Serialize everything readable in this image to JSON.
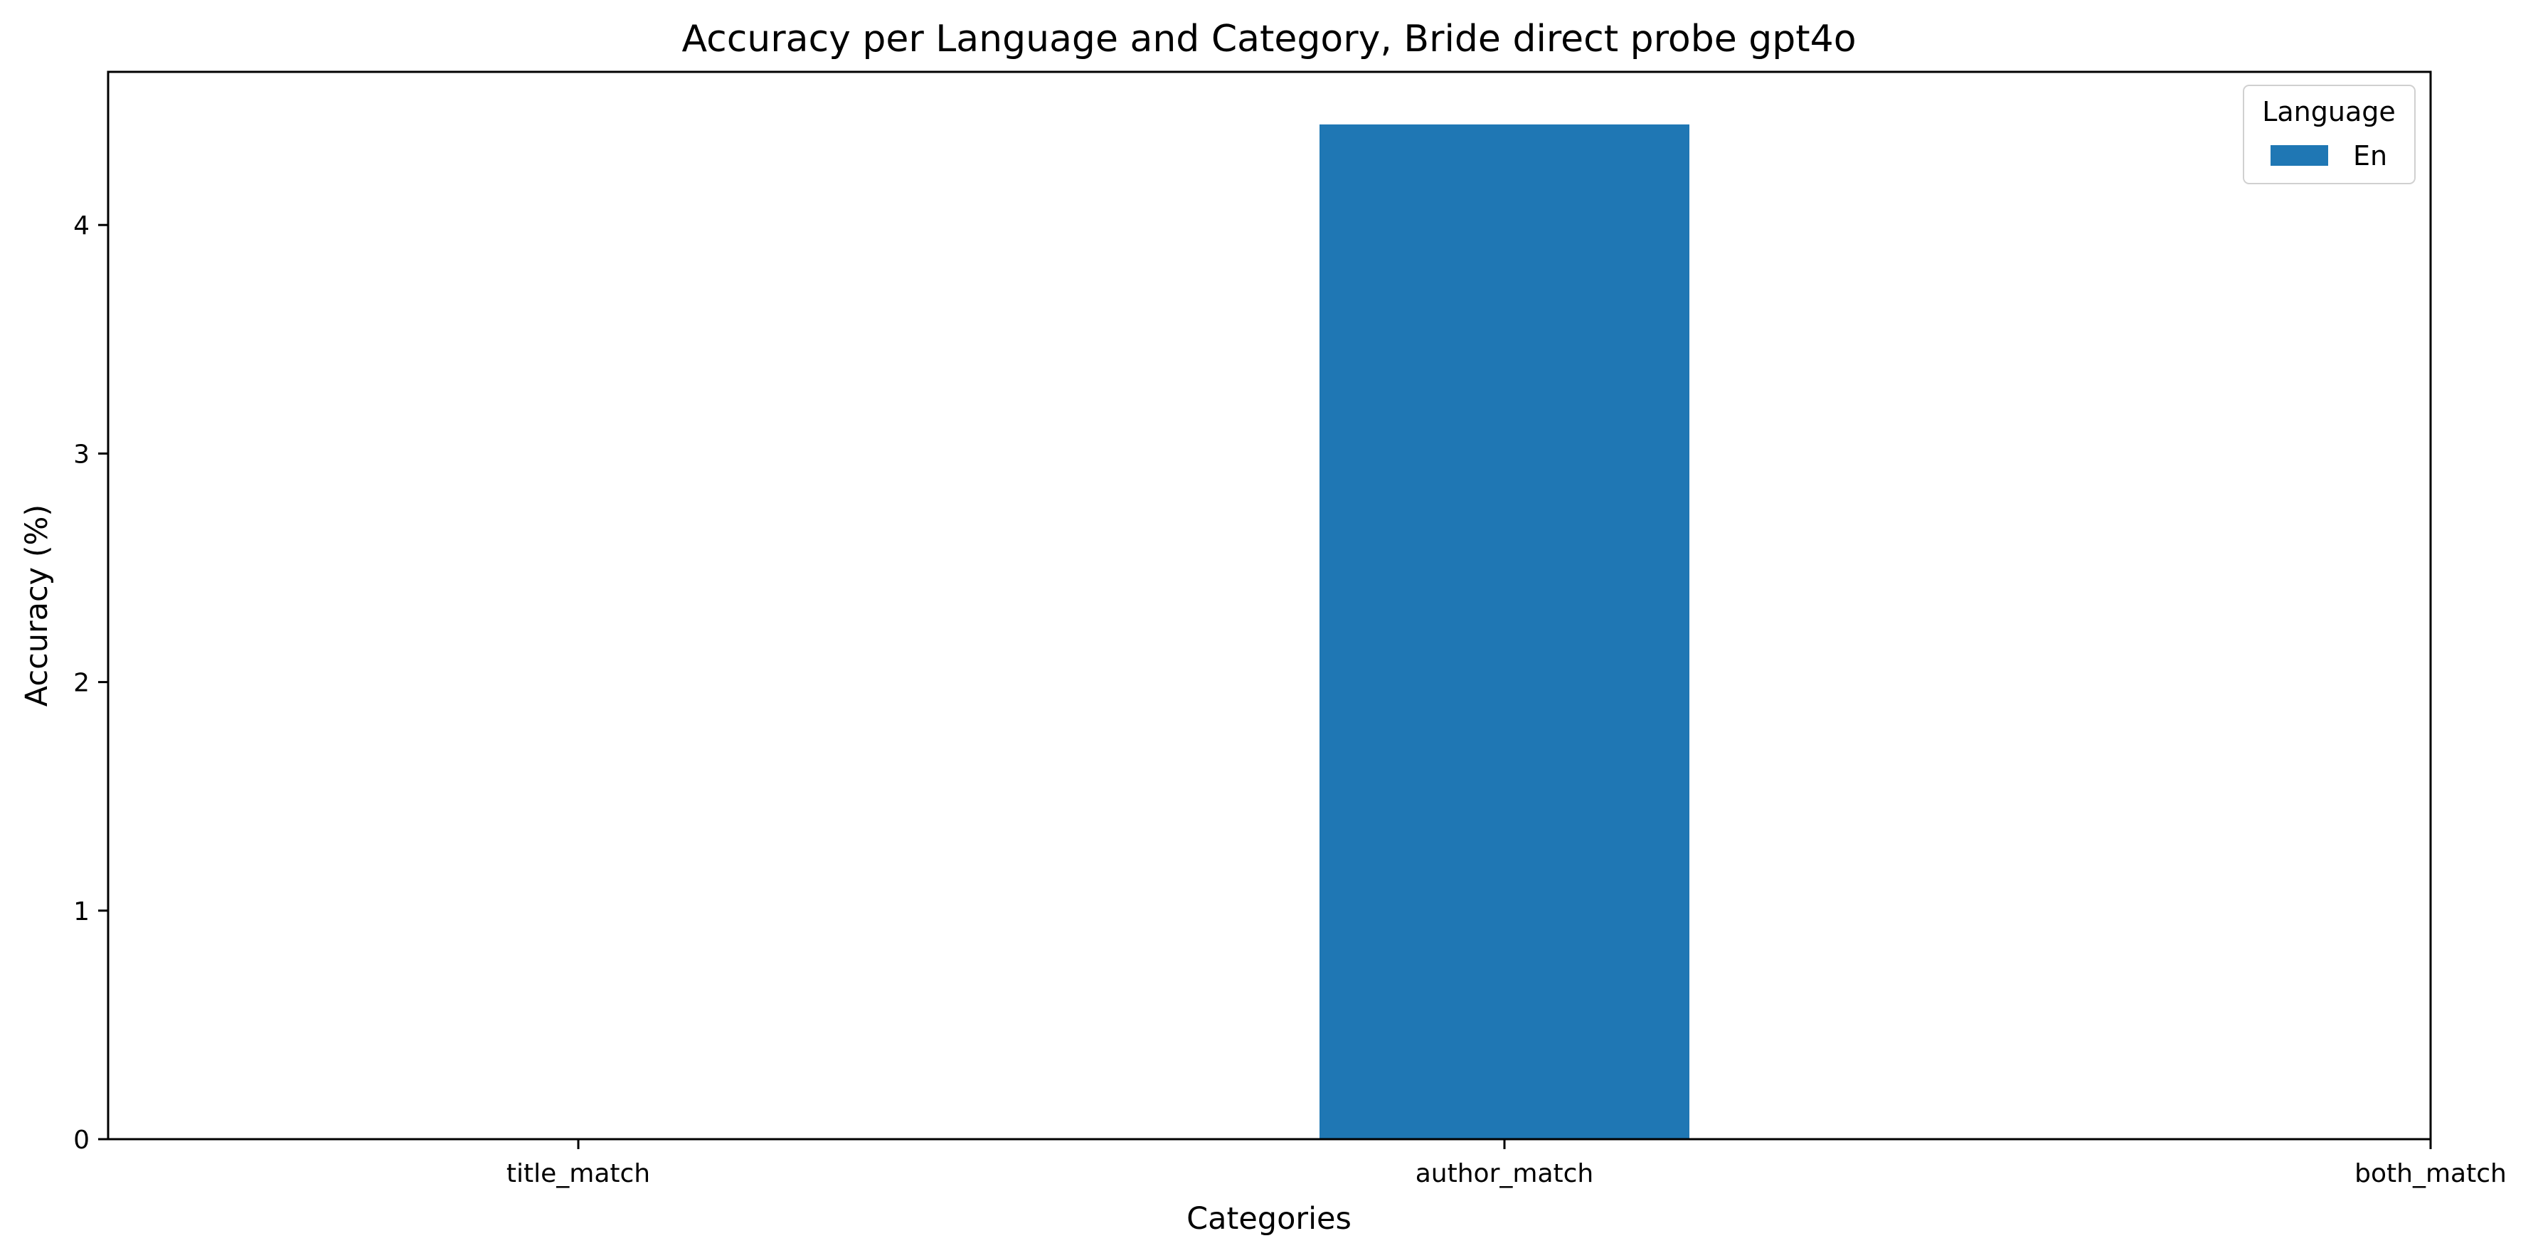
{
  "chart_data": {
    "type": "bar",
    "title": "Accuracy per Language and Category, Bride direct probe gpt4o",
    "xlabel": "Categories",
    "ylabel": "Accuracy (%)",
    "categories": [
      "title_match",
      "author_match",
      "both_match"
    ],
    "series": [
      {
        "name": "En",
        "color": "#1f77b4",
        "values": [
          0,
          4.44,
          0
        ]
      }
    ],
    "ylim": [
      0,
      4.67
    ],
    "yticks": [
      0,
      1,
      2,
      3,
      4
    ],
    "grid": false,
    "legend": {
      "title": "Language",
      "placement": "upper right"
    }
  }
}
